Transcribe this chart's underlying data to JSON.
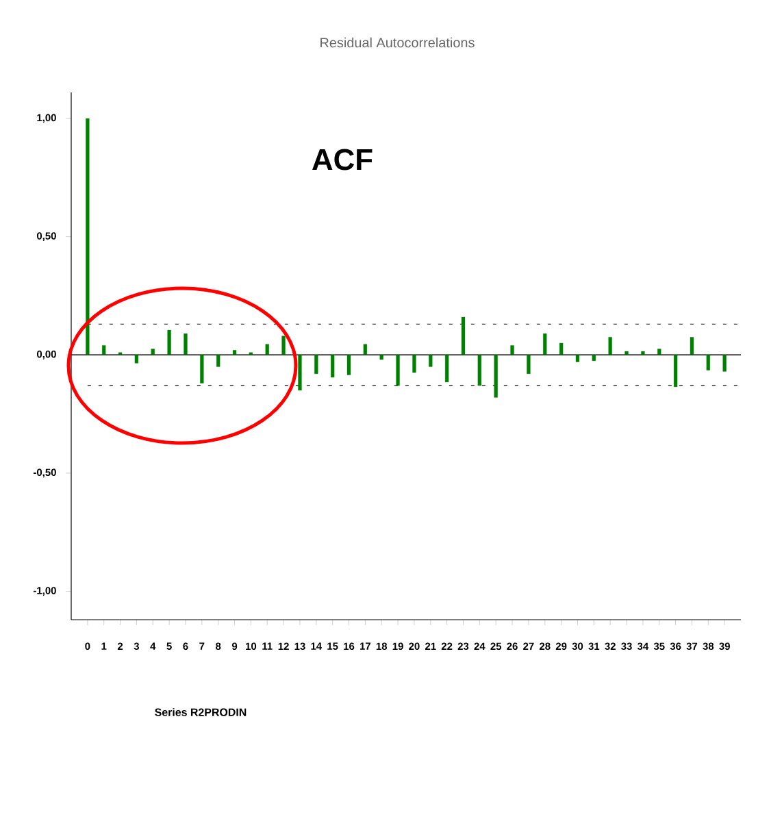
{
  "chart_data": {
    "type": "bar",
    "title": "Residual Autocorrelations",
    "categories": [
      "0",
      "1",
      "2",
      "3",
      "4",
      "5",
      "6",
      "7",
      "8",
      "9",
      "10",
      "11",
      "12",
      "13",
      "14",
      "15",
      "16",
      "17",
      "18",
      "19",
      "20",
      "21",
      "22",
      "23",
      "24",
      "25",
      "26",
      "27",
      "28",
      "29",
      "30",
      "31",
      "32",
      "33",
      "34",
      "35",
      "36",
      "37",
      "38",
      "39"
    ],
    "values": [
      1.0,
      0.04,
      0.01,
      -0.035,
      0.025,
      0.105,
      0.09,
      -0.12,
      -0.05,
      0.02,
      0.01,
      0.045,
      0.08,
      -0.15,
      -0.08,
      -0.095,
      -0.085,
      0.045,
      -0.02,
      -0.13,
      -0.075,
      -0.05,
      -0.115,
      0.16,
      -0.13,
      -0.18,
      0.04,
      -0.08,
      0.09,
      0.05,
      -0.03,
      -0.025,
      0.075,
      0.015,
      0.015,
      0.025,
      -0.135,
      0.075,
      -0.065,
      -0.07
    ],
    "color": "#008000",
    "ylim": [
      -1.12,
      1.11
    ],
    "yticks": [
      {
        "value": -1,
        "label": "-1,00"
      },
      {
        "value": -0.5,
        "label": "-0,50"
      },
      {
        "value": 0,
        "label": "0,00"
      },
      {
        "value": 0.5,
        "label": "0,50"
      },
      {
        "value": 1,
        "label": "1,00"
      }
    ],
    "ref_lines": [
      {
        "axis": "y",
        "value": 0,
        "color": "#000000",
        "line_style": "solid"
      },
      {
        "axis": "y",
        "value": 0.13,
        "color": "#333333",
        "line_style": "dashed"
      },
      {
        "axis": "y",
        "value": -0.13,
        "color": "#333333",
        "line_style": "dashed"
      }
    ],
    "annotations": [
      "ACF",
      "Series R2PRODIN"
    ],
    "grid": false
  }
}
